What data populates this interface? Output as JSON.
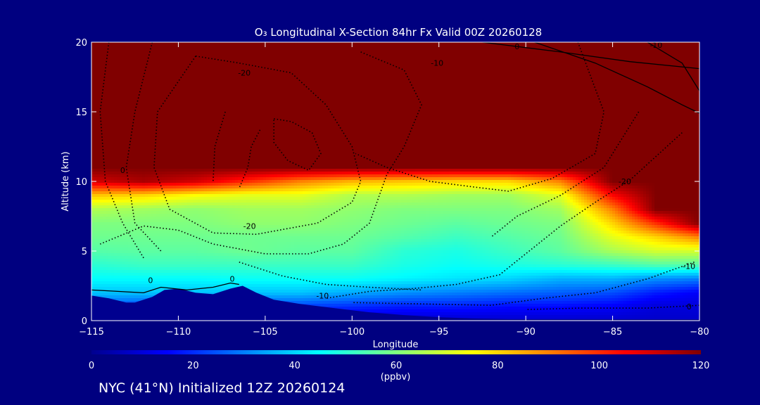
{
  "chart_data": {
    "type": "heatmap",
    "title": "O₃ Longitudinal X-Section 84hr  Fx Valid 00Z 20260128",
    "xlabel": "Longitude",
    "ylabel": "Altitude (km)",
    "xlim": [
      -115,
      -80
    ],
    "ylim": [
      0,
      20
    ],
    "x_ticks": [
      -115,
      -110,
      -105,
      -100,
      -95,
      -90,
      -85,
      -80
    ],
    "x_tick_labels": [
      "−115",
      "−110",
      "−105",
      "−100",
      "−95",
      "−90",
      "−85",
      "−80"
    ],
    "y_ticks": [
      0,
      5,
      10,
      15,
      20
    ],
    "y_tick_labels": [
      "0",
      "5",
      "10",
      "15",
      "20"
    ],
    "colorbar": {
      "min": 0,
      "max": 120,
      "ticks": [
        0,
        20,
        40,
        60,
        80,
        100,
        120
      ],
      "tick_labels": [
        "0",
        "20",
        "40",
        "60",
        "80",
        "100",
        "120"
      ],
      "units": "(ppbv)"
    },
    "variable": "O3 concentration",
    "ozone_field": {
      "x": [
        -115,
        -112,
        -109,
        -106,
        -103,
        -100,
        -97,
        -94,
        -91,
        -88,
        -85,
        -82.5,
        -80
      ],
      "levels_km": [
        0,
        1,
        2,
        3,
        4,
        5,
        6,
        7,
        8,
        9,
        10,
        11,
        12,
        20
      ],
      "rows_ppbv": [
        [
          10,
          12,
          12,
          12,
          10,
          8,
          8,
          8,
          8,
          8,
          8,
          8,
          8
        ],
        [
          25,
          22,
          22,
          22,
          22,
          20,
          18,
          18,
          16,
          16,
          14,
          10,
          10
        ],
        [
          38,
          38,
          38,
          38,
          38,
          35,
          32,
          30,
          28,
          26,
          24,
          18,
          14
        ],
        [
          45,
          45,
          45,
          46,
          46,
          46,
          44,
          42,
          40,
          36,
          36,
          32,
          30
        ],
        [
          50,
          52,
          52,
          52,
          52,
          52,
          48,
          46,
          48,
          50,
          52,
          55,
          55
        ],
        [
          55,
          56,
          56,
          58,
          56,
          56,
          50,
          48,
          52,
          56,
          65,
          70,
          70
        ],
        [
          58,
          58,
          58,
          58,
          58,
          58,
          55,
          52,
          55,
          58,
          72,
          80,
          90
        ],
        [
          60,
          60,
          60,
          62,
          62,
          60,
          58,
          56,
          58,
          60,
          80,
          100,
          120
        ],
        [
          66,
          64,
          62,
          64,
          64,
          62,
          60,
          60,
          60,
          64,
          90,
          120,
          120
        ],
        [
          82,
          80,
          75,
          72,
          72,
          66,
          66,
          64,
          64,
          72,
          105,
          120,
          120
        ],
        [
          110,
          115,
          110,
          100,
          90,
          84,
          82,
          80,
          80,
          90,
          120,
          120,
          120
        ],
        [
          120,
          120,
          120,
          120,
          120,
          120,
          120,
          120,
          120,
          120,
          120,
          120,
          120
        ],
        [
          120,
          120,
          120,
          120,
          120,
          120,
          120,
          120,
          120,
          120,
          120,
          120,
          120
        ],
        [
          120,
          120,
          120,
          120,
          120,
          120,
          120,
          120,
          120,
          120,
          120,
          120,
          120
        ]
      ]
    },
    "terrain_km": {
      "x": [
        -115,
        -114,
        -113,
        -112.5,
        -111.5,
        -110.8,
        -110,
        -109,
        -108,
        -107,
        -106.3,
        -105.5,
        -104.5,
        -103,
        -101,
        -99,
        -97,
        -95,
        -93,
        -91,
        -89,
        -87,
        -85,
        -83,
        -81,
        -80
      ],
      "height": [
        1.8,
        1.6,
        1.3,
        1.3,
        1.7,
        2.2,
        2.3,
        2.0,
        1.9,
        2.3,
        2.5,
        2.0,
        1.5,
        1.2,
        0.9,
        0.6,
        0.4,
        0.25,
        0.15,
        0.1,
        0.1,
        0.1,
        0.1,
        0.1,
        0.1,
        0.1
      ]
    },
    "contour_labels": [
      {
        "text": "-20",
        "lon": -106.2,
        "alt": 17.6
      },
      {
        "text": "-10",
        "lon": -95.1,
        "alt": 18.3
      },
      {
        "text": "-10",
        "lon": -82.5,
        "alt": 19.6
      },
      {
        "text": "0",
        "lon": -90.5,
        "alt": 19.5
      },
      {
        "text": "0",
        "lon": -113.2,
        "alt": 10.6
      },
      {
        "text": "-20",
        "lon": -105.9,
        "alt": 6.6
      },
      {
        "text": "-20",
        "lon": -84.3,
        "alt": 9.8
      },
      {
        "text": "-10",
        "lon": -80.6,
        "alt": 3.7
      },
      {
        "text": "-10",
        "lon": -101.7,
        "alt": 1.6
      },
      {
        "text": "0",
        "lon": -111.6,
        "alt": 2.7
      },
      {
        "text": "0",
        "lon": -106.9,
        "alt": 2.8
      },
      {
        "text": "0",
        "lon": -80.6,
        "alt": 0.8
      }
    ]
  },
  "footer_text": "NYC (41°N) Initialized 12Z 20260124",
  "colors": {
    "background": "#000080",
    "text": "#ffffff",
    "terrain": "#00008f",
    "contour": "#000000"
  }
}
